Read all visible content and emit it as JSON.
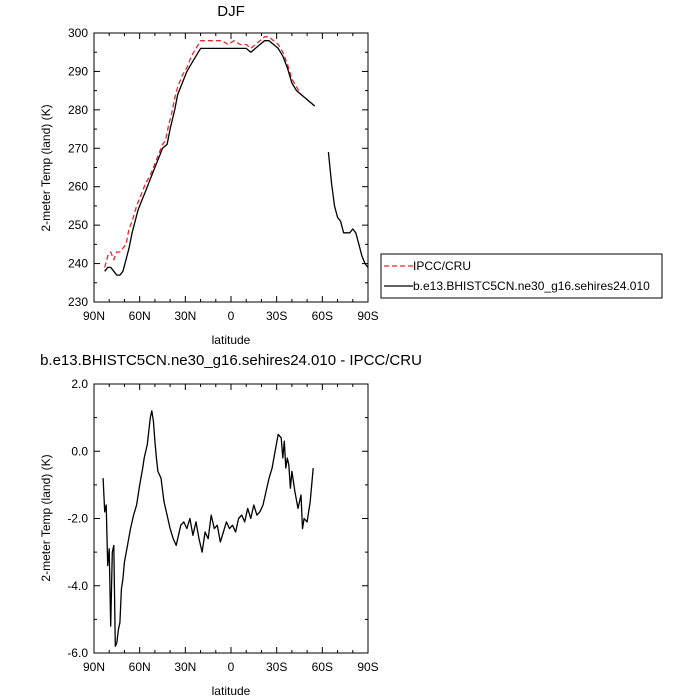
{
  "chart_data": [
    {
      "type": "line",
      "title": "DJF",
      "xlabel": "latitude",
      "ylabel": "2-meter Temp (land) (K)",
      "xlim": [
        -90,
        90
      ],
      "ylim": [
        230,
        300
      ],
      "x_ticks": [
        {
          "value": -90,
          "label": "90N"
        },
        {
          "value": -60,
          "label": "60N"
        },
        {
          "value": -30,
          "label": "30N"
        },
        {
          "value": 0,
          "label": "0"
        },
        {
          "value": 30,
          "label": "30S"
        },
        {
          "value": 60,
          "label": "60S"
        },
        {
          "value": 90,
          "label": "90S"
        }
      ],
      "y_ticks": [
        230,
        240,
        250,
        260,
        270,
        280,
        290,
        300
      ],
      "legend_position": "right",
      "series": [
        {
          "name": "IPCC/CRU",
          "color": "#e8262a",
          "dash": "dashed",
          "points": [
            [
              -83,
              239
            ],
            [
              -81,
              242
            ],
            [
              -79,
              243
            ],
            [
              -77,
              241
            ],
            [
              -75,
              243
            ],
            [
              -73,
              243
            ],
            [
              -71,
              244
            ],
            [
              -69,
              245
            ],
            [
              -67,
              249
            ],
            [
              -65,
              251
            ],
            [
              -62,
              255
            ],
            [
              -59,
              258
            ],
            [
              -56,
              261
            ],
            [
              -53,
              263
            ],
            [
              -50,
              266
            ],
            [
              -47,
              269
            ],
            [
              -45,
              271
            ],
            [
              -43,
              272
            ],
            [
              -41,
              276
            ],
            [
              -39,
              279
            ],
            [
              -37,
              283
            ],
            [
              -35,
              286
            ],
            [
              -32,
              289
            ],
            [
              -29,
              291
            ],
            [
              -26,
              294
            ],
            [
              -23,
              296
            ],
            [
              -20,
              298
            ],
            [
              -17,
              298
            ],
            [
              -14,
              298
            ],
            [
              -10,
              298
            ],
            [
              -6,
              298
            ],
            [
              -2,
              297
            ],
            [
              2,
              298
            ],
            [
              6,
              297
            ],
            [
              10,
              297
            ],
            [
              13,
              296
            ],
            [
              16,
              297
            ],
            [
              19,
              298
            ],
            [
              22,
              299
            ],
            [
              25,
              299
            ],
            [
              28,
              298
            ],
            [
              31,
              297
            ],
            [
              34,
              295
            ],
            [
              37,
              292
            ],
            [
              40,
              288
            ],
            [
              43,
              286
            ],
            [
              46,
              284
            ],
            [
              49,
              283
            ],
            [
              52,
              282
            ],
            [
              55,
              281
            ]
          ]
        },
        {
          "name": "b.e13.BHISTC5CN.ne30_g16.sehires24.010",
          "color": "#000000",
          "dash": "solid",
          "segments": [
            [
              [
                -83,
                238
              ],
              [
                -81,
                239
              ],
              [
                -79,
                239
              ],
              [
                -77,
                238
              ],
              [
                -75,
                237
              ],
              [
                -73,
                237
              ],
              [
                -71,
                238
              ],
              [
                -69,
                241
              ],
              [
                -67,
                244
              ],
              [
                -65,
                248
              ],
              [
                -63,
                251
              ],
              [
                -61,
                254
              ],
              [
                -58,
                257
              ],
              [
                -56,
                259
              ],
              [
                -53,
                262
              ],
              [
                -50,
                265
              ],
              [
                -47,
                268
              ],
              [
                -45,
                270
              ],
              [
                -42,
                271
              ],
              [
                -40,
                275
              ],
              [
                -37,
                280
              ],
              [
                -35,
                284
              ],
              [
                -32,
                287
              ],
              [
                -29,
                290
              ],
              [
                -26,
                292
              ],
              [
                -23,
                294
              ],
              [
                -20,
                296
              ],
              [
                -17,
                296
              ],
              [
                -14,
                296
              ],
              [
                -10,
                296
              ],
              [
                -6,
                296
              ],
              [
                -2,
                296
              ],
              [
                2,
                296
              ],
              [
                6,
                296
              ],
              [
                10,
                296
              ],
              [
                13,
                295
              ],
              [
                16,
                296
              ],
              [
                19,
                297
              ],
              [
                22,
                298
              ],
              [
                25,
                298
              ],
              [
                28,
                297
              ],
              [
                31,
                296
              ],
              [
                34,
                294
              ],
              [
                37,
                291
              ],
              [
                40,
                287
              ],
              [
                43,
                285
              ],
              [
                46,
                284
              ],
              [
                49,
                283
              ],
              [
                52,
                282
              ],
              [
                55,
                281
              ]
            ],
            [
              [
                64,
                269
              ],
              [
                66,
                261
              ],
              [
                68,
                255
              ],
              [
                70,
                252
              ],
              [
                72,
                251
              ],
              [
                74,
                248
              ],
              [
                76,
                248
              ],
              [
                78,
                248
              ],
              [
                80,
                249
              ],
              [
                82,
                248
              ],
              [
                84,
                245
              ],
              [
                86,
                242
              ],
              [
                88,
                240
              ],
              [
                90,
                239
              ]
            ]
          ]
        }
      ]
    },
    {
      "type": "line",
      "title": "b.e13.BHISTC5CN.ne30_g16.sehires24.010 - IPCC/CRU",
      "xlabel": "latitude",
      "ylabel": "2-meter Temp (land) (K)",
      "xlim": [
        -90,
        90
      ],
      "ylim": [
        -6,
        2
      ],
      "x_ticks": [
        {
          "value": -90,
          "label": "90N"
        },
        {
          "value": -60,
          "label": "60N"
        },
        {
          "value": -30,
          "label": "30N"
        },
        {
          "value": 0,
          "label": "0"
        },
        {
          "value": 30,
          "label": "30S"
        },
        {
          "value": 60,
          "label": "60S"
        },
        {
          "value": 90,
          "label": "90S"
        }
      ],
      "y_ticks": [
        {
          "value": -6,
          "label": "-6.0"
        },
        {
          "value": -4,
          "label": "-4.0"
        },
        {
          "value": -2,
          "label": "-2.0"
        },
        {
          "value": 0,
          "label": "0.0"
        },
        {
          "value": 2,
          "label": "2.0"
        }
      ],
      "series": [
        {
          "name": "",
          "color": "#000000",
          "dash": "solid",
          "points": [
            [
              -84,
              -0.8
            ],
            [
              -83,
              -1.8
            ],
            [
              -82,
              -1.6
            ],
            [
              -81,
              -3.4
            ],
            [
              -80,
              -2.9
            ],
            [
              -79,
              -5.2
            ],
            [
              -78,
              -3.0
            ],
            [
              -77,
              -2.8
            ],
            [
              -76,
              -5.8
            ],
            [
              -75,
              -5.7
            ],
            [
              -74,
              -5.3
            ],
            [
              -73,
              -5.1
            ],
            [
              -72,
              -4.1
            ],
            [
              -71,
              -3.8
            ],
            [
              -70,
              -3.3
            ],
            [
              -68,
              -2.8
            ],
            [
              -66,
              -2.3
            ],
            [
              -64,
              -1.9
            ],
            [
              -62,
              -1.6
            ],
            [
              -60,
              -1.0
            ],
            [
              -58,
              -0.5
            ],
            [
              -57,
              -0.2
            ],
            [
              -55,
              0.2
            ],
            [
              -53,
              1.0
            ],
            [
              -52,
              1.2
            ],
            [
              -51,
              0.9
            ],
            [
              -50,
              0.3
            ],
            [
              -49,
              -0.2
            ],
            [
              -48,
              -0.6
            ],
            [
              -46,
              -0.8
            ],
            [
              -44,
              -1.5
            ],
            [
              -42,
              -1.9
            ],
            [
              -40,
              -2.3
            ],
            [
              -38,
              -2.6
            ],
            [
              -36,
              -2.8
            ],
            [
              -35,
              -2.6
            ],
            [
              -33,
              -2.2
            ],
            [
              -31,
              -2.1
            ],
            [
              -29,
              -2.3
            ],
            [
              -27,
              -2.0
            ],
            [
              -25,
              -2.5
            ],
            [
              -23,
              -2.1
            ],
            [
              -21,
              -2.6
            ],
            [
              -19,
              -3.0
            ],
            [
              -17,
              -2.4
            ],
            [
              -15,
              -2.6
            ],
            [
              -13,
              -1.9
            ],
            [
              -11,
              -2.3
            ],
            [
              -9,
              -2.2
            ],
            [
              -7,
              -2.7
            ],
            [
              -5,
              -2.4
            ],
            [
              -3,
              -2.1
            ],
            [
              -1,
              -2.3
            ],
            [
              1,
              -2.2
            ],
            [
              3,
              -2.4
            ],
            [
              5,
              -2.0
            ],
            [
              7,
              -1.9
            ],
            [
              9,
              -2.1
            ],
            [
              11,
              -1.7
            ],
            [
              13,
              -2.0
            ],
            [
              15,
              -1.6
            ],
            [
              17,
              -1.9
            ],
            [
              19,
              -1.8
            ],
            [
              21,
              -1.6
            ],
            [
              23,
              -1.2
            ],
            [
              25,
              -0.8
            ],
            [
              27,
              -0.5
            ],
            [
              29,
              0.0
            ],
            [
              31,
              0.5
            ],
            [
              33,
              0.4
            ],
            [
              34,
              -0.2
            ],
            [
              35,
              0.3
            ],
            [
              36,
              -0.5
            ],
            [
              37,
              -0.2
            ],
            [
              38,
              -0.4
            ],
            [
              39,
              -1.1
            ],
            [
              40,
              -0.6
            ],
            [
              42,
              -1.2
            ],
            [
              44,
              -1.7
            ],
            [
              46,
              -1.3
            ],
            [
              47,
              -2.3
            ],
            [
              48,
              -2.0
            ],
            [
              50,
              -2.1
            ],
            [
              52,
              -1.5
            ],
            [
              54,
              -0.5
            ]
          ]
        }
      ]
    }
  ]
}
